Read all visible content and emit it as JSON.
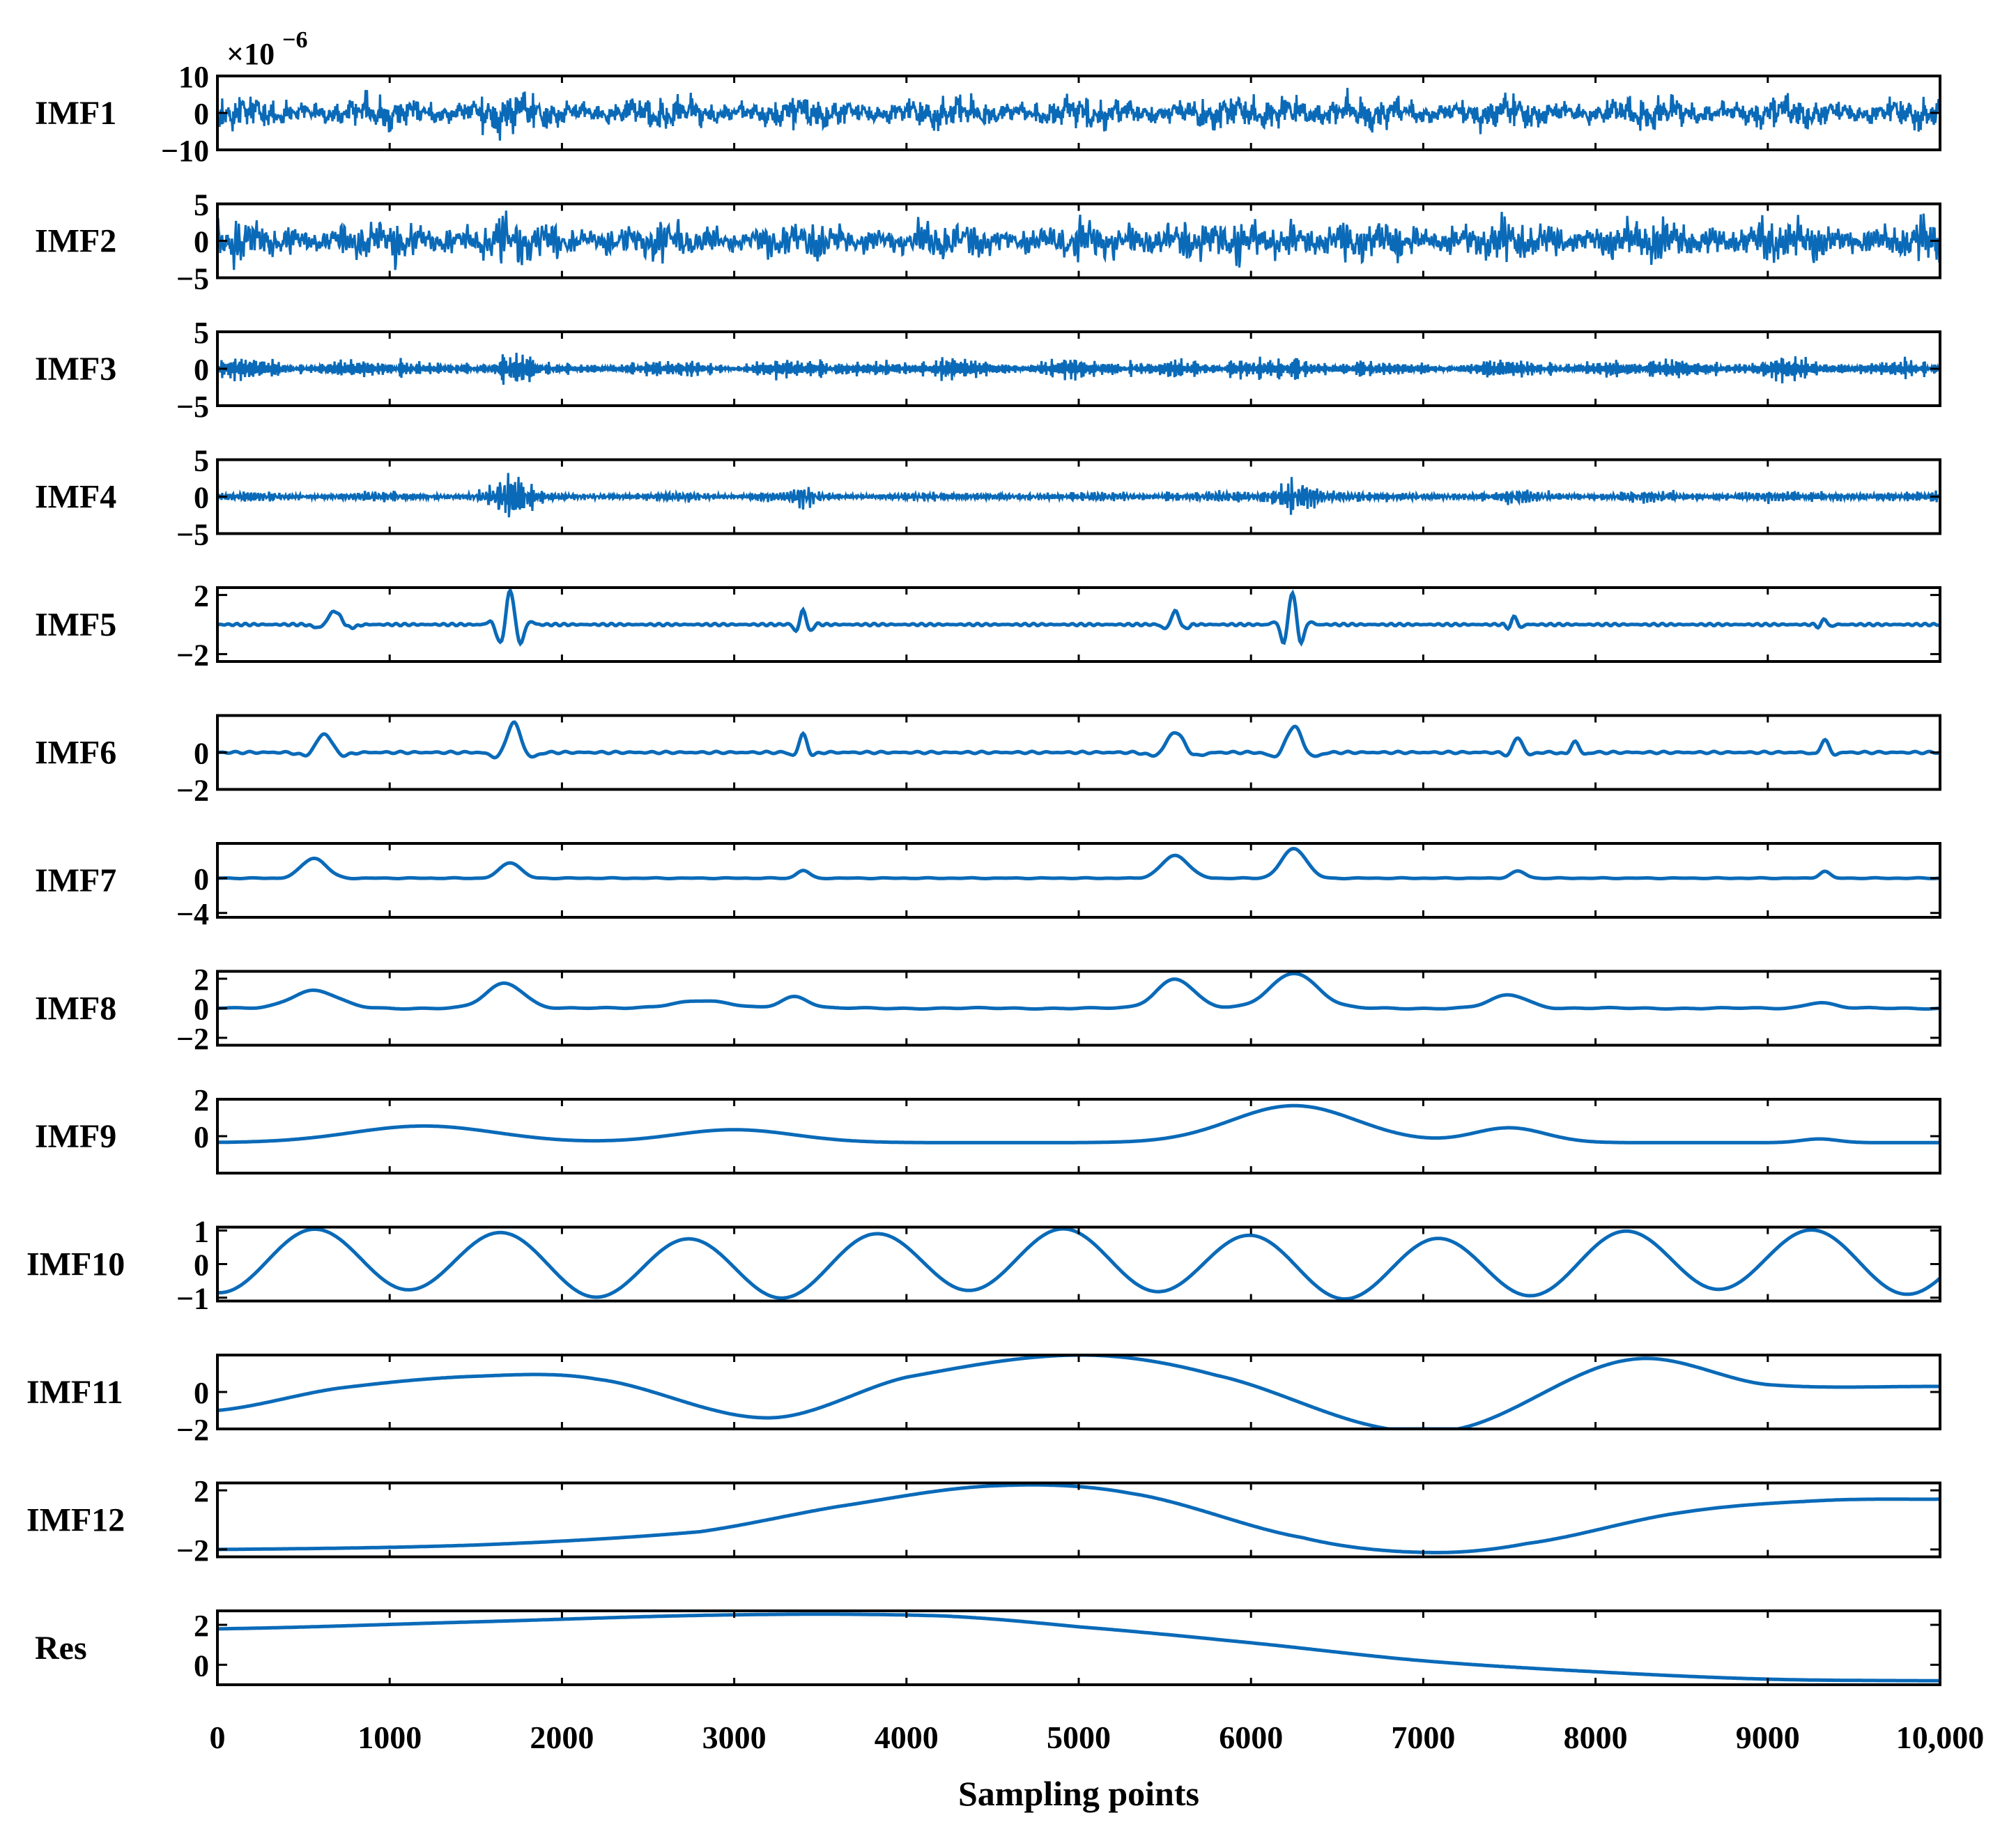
{
  "chart_data": {
    "type": "line",
    "title": "",
    "xlabel": "Sampling points",
    "xlim": [
      0,
      10000
    ],
    "x_ticks": [
      0,
      1000,
      2000,
      3000,
      4000,
      5000,
      6000,
      7000,
      8000,
      9000,
      10000
    ],
    "x_tick_labels": [
      "0",
      "1000",
      "2000",
      "3000",
      "4000",
      "5000",
      "6000",
      "7000",
      "8000",
      "9000",
      "10,000"
    ],
    "exponent_label": "×10",
    "exponent_power": "−6",
    "line_color": "#0a6ab8",
    "series": [
      {
        "name": "IMF1",
        "ylim": [
          -10,
          10
        ],
        "yticks": [
          10,
          0,
          -10
        ],
        "ytick_labels": [
          "10",
          "0",
          "−10"
        ],
        "kind": "noise",
        "amp": 3.2,
        "freq": 3000,
        "bursts": [
          [
            1610,
            160,
            1.5
          ],
          [
            6220,
            120,
            1.7
          ]
        ]
      },
      {
        "name": "IMF2",
        "ylim": [
          -5,
          5
        ],
        "yticks": [
          5,
          0,
          -5
        ],
        "ytick_labels": [
          "5",
          "0",
          "−5"
        ],
        "kind": "noise",
        "amp": 1.9,
        "freq": 2000,
        "bursts": [
          [
            1650,
            200,
            1.3
          ],
          [
            5520,
            120,
            1.5
          ],
          [
            6240,
            150,
            1.4
          ]
        ]
      },
      {
        "name": "IMF3",
        "ylim": [
          -5,
          5
        ],
        "yticks": [
          5,
          0,
          -5
        ],
        "ytick_labels": [
          "5",
          "0",
          "−5"
        ],
        "kind": "noise",
        "amp": 0.9,
        "freq": 1200,
        "bursts": [
          [
            1700,
            110,
            2.2
          ],
          [
            6220,
            120,
            3.0
          ],
          [
            5550,
            120,
            1.6
          ]
        ]
      },
      {
        "name": "IMF4",
        "ylim": [
          -5,
          5
        ],
        "yticks": [
          5,
          0,
          -5
        ],
        "ytick_labels": [
          "5",
          "0",
          "−5"
        ],
        "kind": "noise",
        "amp": 0.5,
        "freq": 800,
        "bursts": [
          [
            1720,
            130,
            6.0
          ],
          [
            6250,
            120,
            7.0
          ],
          [
            3400,
            60,
            2.5
          ],
          [
            3150,
            80,
            1.8
          ],
          [
            5530,
            60,
            2.2
          ],
          [
            7550,
            80,
            1.6
          ]
        ]
      },
      {
        "name": "IMF5",
        "ylim": [
          -2.5,
          2.5
        ],
        "yticks": [
          2,
          -2
        ],
        "ytick_labels": [
          "2",
          "−2"
        ],
        "kind": "packets",
        "base": 0.08,
        "freq": 200,
        "packets": [
          [
            680,
            90,
            0.9,
            14
          ],
          [
            1700,
            80,
            2.3,
            24
          ],
          [
            3400,
            50,
            1.0,
            20
          ],
          [
            5560,
            60,
            0.9,
            16
          ],
          [
            6240,
            70,
            2.2,
            24
          ],
          [
            7530,
            40,
            0.6,
            18
          ],
          [
            9330,
            40,
            0.4,
            18
          ]
        ]
      },
      {
        "name": "IMF6",
        "ylim": [
          -2,
          2
        ],
        "yticks": [
          0,
          -2
        ],
        "ytick_labels": [
          "0",
          "−2"
        ],
        "kind": "packets",
        "base": 0.06,
        "freq": 120,
        "packets": [
          [
            620,
            100,
            1.0,
            12
          ],
          [
            1720,
            90,
            1.6,
            12
          ],
          [
            3400,
            50,
            1.0,
            12
          ],
          [
            5560,
            110,
            1.1,
            12
          ],
          [
            6250,
            100,
            1.4,
            12
          ],
          [
            7550,
            60,
            0.8,
            12
          ],
          [
            7880,
            50,
            0.6,
            12
          ],
          [
            9330,
            50,
            0.7,
            12
          ]
        ]
      },
      {
        "name": "IMF7",
        "ylim": [
          -4.5,
          4
        ],
        "yticks": [
          0,
          -4
        ],
        "ytick_labels": [
          "0",
          "−4"
        ],
        "kind": "packets",
        "base": 0.05,
        "freq": 60,
        "packets": [
          [
            560,
            120,
            2.3,
            5.5
          ],
          [
            1700,
            100,
            1.8,
            5.5
          ],
          [
            3400,
            60,
            0.9,
            5.5
          ],
          [
            5560,
            130,
            2.6,
            5.5
          ],
          [
            6250,
            120,
            3.4,
            5.5
          ],
          [
            7550,
            70,
            0.8,
            5.5
          ],
          [
            9330,
            50,
            0.8,
            5.5
          ]
        ]
      },
      {
        "name": "IMF8",
        "ylim": [
          -2.5,
          2.5
        ],
        "yticks": [
          2,
          0,
          -2
        ],
        "ytick_labels": [
          "2",
          "0",
          "−2"
        ],
        "kind": "packets",
        "base": 0.05,
        "freq": 30,
        "packets": [
          [
            560,
            200,
            1.2,
            3.2
          ],
          [
            1670,
            160,
            1.7,
            3.2
          ],
          [
            2800,
            250,
            0.5,
            3.2
          ],
          [
            3350,
            120,
            0.8,
            3.2
          ],
          [
            5560,
            160,
            2.0,
            3.2
          ],
          [
            6250,
            200,
            2.4,
            3.2
          ],
          [
            7500,
            160,
            0.9,
            3.2
          ],
          [
            9300,
            120,
            0.4,
            3.2
          ]
        ]
      },
      {
        "name": "IMF9",
        "ylim": [
          -2,
          2
        ],
        "yticks": [
          2,
          0
        ],
        "ytick_labels": [
          "2",
          "0"
        ],
        "kind": "packets",
        "base": 0.0,
        "freq": 20,
        "offset": -0.35,
        "packets": [
          [
            1200,
            600,
            0.9,
            1.55
          ],
          [
            3000,
            500,
            0.7,
            1.55
          ],
          [
            6250,
            520,
            2.0,
            1.55
          ],
          [
            7500,
            300,
            0.8,
            1.55
          ],
          [
            9300,
            150,
            0.2,
            1.55
          ]
        ]
      },
      {
        "name": "IMF10",
        "ylim": [
          -1.1,
          1.1
        ],
        "yticks": [
          1,
          0,
          -1
        ],
        "ytick_labels": [
          "1",
          "0",
          "−1"
        ],
        "kind": "waves",
        "waves": [
          [
            0.9,
            0.00092,
            4.6
          ],
          [
            0.15,
            0.00025,
            0.3
          ]
        ]
      },
      {
        "name": "IMF11",
        "ylim": [
          -2,
          2
        ],
        "yticks": [
          0,
          -2
        ],
        "ytick_labels": [
          "0",
          "−2"
        ],
        "kind": "points",
        "points": [
          [
            0,
            -1.0
          ],
          [
            700,
            0.2
          ],
          [
            1500,
            0.85
          ],
          [
            2200,
            0.7
          ],
          [
            3200,
            -1.4
          ],
          [
            4000,
            0.8
          ],
          [
            5000,
            2.0
          ],
          [
            5800,
            0.9
          ],
          [
            6800,
            -2.0
          ],
          [
            7200,
            -2.0
          ],
          [
            8200,
            1.75
          ],
          [
            9000,
            0.4
          ],
          [
            10000,
            0.3
          ]
        ]
      },
      {
        "name": "IMF12",
        "ylim": [
          -2.5,
          2.5
        ],
        "yticks": [
          2,
          -2
        ],
        "ytick_labels": [
          "2",
          "−2"
        ],
        "kind": "points",
        "points": [
          [
            0,
            -2.0
          ],
          [
            1500,
            -1.7
          ],
          [
            2800,
            -0.8
          ],
          [
            3600,
            0.9
          ],
          [
            4500,
            2.3
          ],
          [
            5300,
            1.8
          ],
          [
            6300,
            -1.2
          ],
          [
            7000,
            -2.2
          ],
          [
            7600,
            -1.6
          ],
          [
            8500,
            0.5
          ],
          [
            9300,
            1.3
          ],
          [
            10000,
            1.4
          ]
        ]
      },
      {
        "name": "Res",
        "ylim": [
          -1,
          2.7
        ],
        "yticks": [
          2,
          0
        ],
        "ytick_labels": [
          "2",
          "0"
        ],
        "kind": "points",
        "points": [
          [
            0,
            1.8
          ],
          [
            1500,
            2.15
          ],
          [
            3000,
            2.5
          ],
          [
            4200,
            2.45
          ],
          [
            5000,
            1.9
          ],
          [
            6000,
            1.1
          ],
          [
            7000,
            0.2
          ],
          [
            8000,
            -0.35
          ],
          [
            9000,
            -0.72
          ],
          [
            10000,
            -0.8
          ]
        ]
      }
    ]
  }
}
